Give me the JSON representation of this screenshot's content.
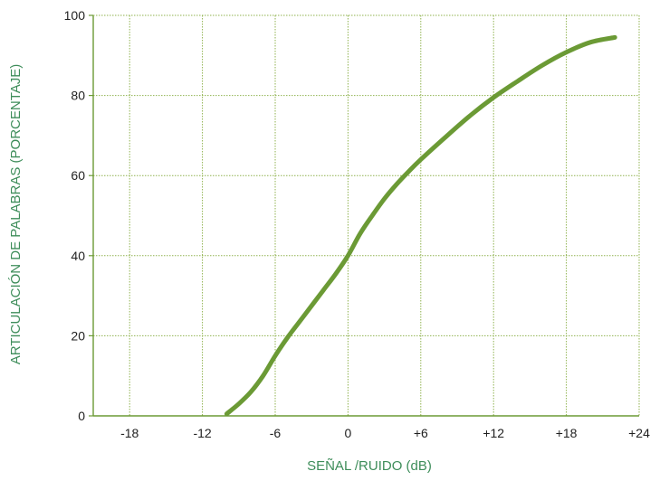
{
  "chart_data": {
    "type": "line",
    "title": "",
    "xlabel": "SEÑAL /RUIDO (dB)",
    "ylabel": "ARTICULACIÓN DE PALABRAS (PORCENTAJE)",
    "xlim": [
      -21,
      24
    ],
    "ylim": [
      0,
      100
    ],
    "x_ticks": [
      {
        "value": -18,
        "label": "-18"
      },
      {
        "value": -12,
        "label": "-12"
      },
      {
        "value": -6,
        "label": "-6"
      },
      {
        "value": 0,
        "label": "0"
      },
      {
        "value": 6,
        "label": "+6"
      },
      {
        "value": 12,
        "label": "+12"
      },
      {
        "value": 18,
        "label": "+18"
      },
      {
        "value": 24,
        "label": "+24"
      }
    ],
    "y_ticks": [
      {
        "value": 0,
        "label": "0"
      },
      {
        "value": 20,
        "label": "20"
      },
      {
        "value": 40,
        "label": "40"
      },
      {
        "value": 60,
        "label": "60"
      },
      {
        "value": 80,
        "label": "80"
      },
      {
        "value": 100,
        "label": "100"
      }
    ],
    "grid": true,
    "series": [
      {
        "x": [
          -10,
          -9,
          -8,
          -7,
          -6,
          -5,
          -4,
          -3,
          -2,
          -1,
          0,
          1,
          2,
          3,
          4,
          5,
          6,
          8,
          10,
          12,
          14,
          16,
          18,
          20,
          22
        ],
        "y": [
          0.5,
          3,
          6,
          10,
          15,
          19.5,
          23.5,
          27.5,
          31.5,
          35.5,
          40,
          45.5,
          50,
          54.2,
          57.8,
          61,
          64,
          69.5,
          74.8,
          79.5,
          83.6,
          87.5,
          90.8,
          93.3,
          94.5
        ]
      }
    ],
    "colors": {
      "line": "#6b9a35",
      "axis": "#6b9a35",
      "grid": "#8fb24e",
      "axis_title": "#3e8d5a",
      "tick_label": "#1f1f1f"
    }
  }
}
